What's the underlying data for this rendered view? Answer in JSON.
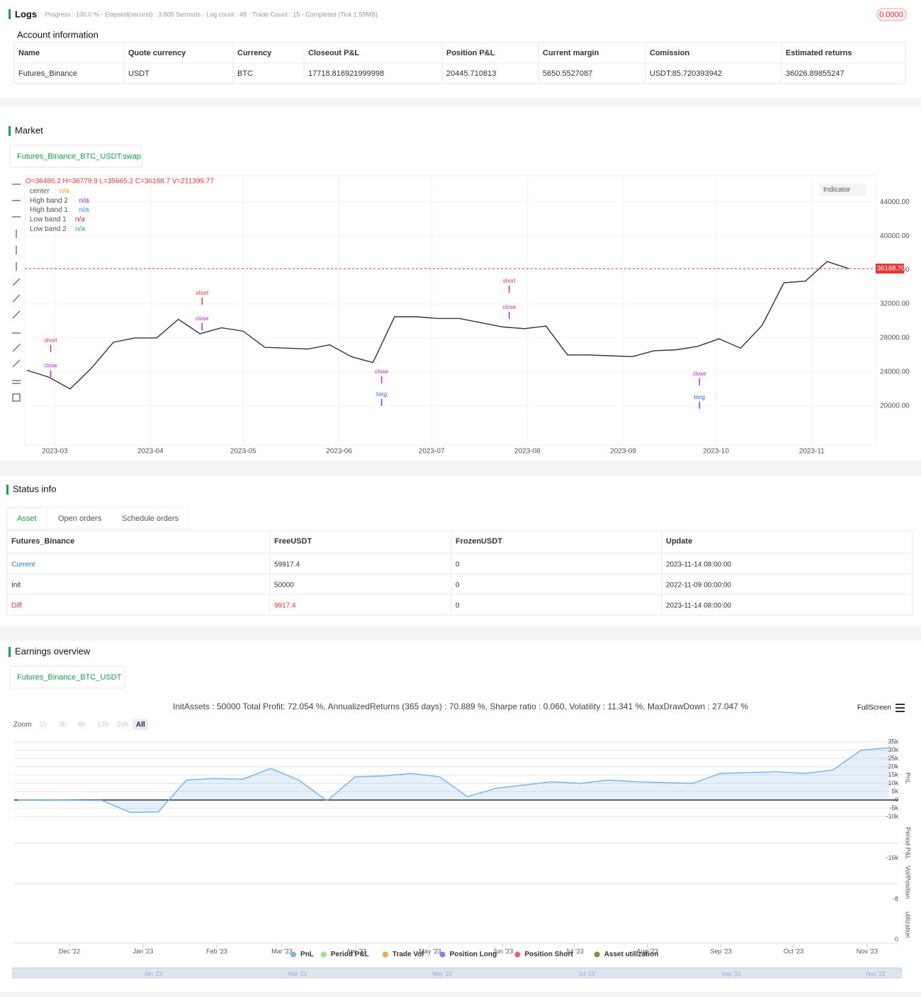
{
  "logs": {
    "title": "Logs",
    "status": "- Progress : 100.0 % - Elapsed(second) : 3.805  Seconds - Log count : 48 - Trade Count : 15 - Completed (Tick 1.59MB)",
    "badge": "0.0000"
  },
  "account": {
    "title": "Account information",
    "columns": [
      "Name",
      "Quote currency",
      "Currency",
      "Closeout P&L",
      "Position P&L",
      "Current margin",
      "Comission",
      "Estimated returns"
    ],
    "rows": [
      [
        "Futures_Binance",
        "USDT",
        "BTC",
        "17718.816921999998",
        "20445.710813",
        "5650.5527087",
        "USDT:85.720393942",
        "36026.89855247"
      ]
    ]
  },
  "market": {
    "title": "Market",
    "tab": "Futures_Binance_BTC_USDT:swap",
    "indicator_button": "Indicator",
    "chart_data": {
      "type": "line",
      "ohlc_label": "O=36486.2 H=36779.9 L=35665.2 C=36168.7 V=211399.77",
      "legend": [
        {
          "name": "center",
          "value": "n/a",
          "color": "#f59e0b"
        },
        {
          "name": "High band 2",
          "value": "n/a",
          "color": "#9c27b0"
        },
        {
          "name": "High band 1",
          "value": "n/a",
          "color": "#2196f3"
        },
        {
          "name": "Low band 1",
          "value": "n/a",
          "color": "#e91e63"
        },
        {
          "name": "Low band 2",
          "value": "n/a",
          "color": "#26a69a"
        }
      ],
      "closes": [
        24200,
        23400,
        22000,
        24500,
        27500,
        28000,
        28000,
        30200,
        28500,
        29200,
        28800,
        26900,
        26800,
        26700,
        27200,
        25800,
        25100,
        30500,
        30500,
        30300,
        30300,
        29800,
        29300,
        29100,
        29400,
        26000,
        26000,
        25900,
        25800,
        26500,
        26600,
        27000,
        27900,
        26800,
        29500,
        34500,
        34700,
        37000,
        36168.7
      ],
      "color": "#333333",
      "xlim": [
        0,
        38
      ],
      "xticks": [
        {
          "value": 1.29,
          "label": "2023-03"
        },
        {
          "value": 5.71,
          "label": "2023-04"
        },
        {
          "value": 10.0,
          "label": "2023-05"
        },
        {
          "value": 14.43,
          "label": "2023-06"
        },
        {
          "value": 18.71,
          "label": "2023-07"
        },
        {
          "value": 23.14,
          "label": "2023-08"
        },
        {
          "value": 27.57,
          "label": "2023-09"
        },
        {
          "value": 31.86,
          "label": "2023-10"
        },
        {
          "value": 36.29,
          "label": "2023-11"
        }
      ],
      "ylim": [
        15400,
        47100
      ],
      "yticks": [
        {
          "value": 20000,
          "label": "20000.00"
        },
        {
          "value": 24000,
          "label": "24000.00"
        },
        {
          "value": 28000,
          "label": "28000.00"
        },
        {
          "value": 32000,
          "label": "32000.00"
        },
        {
          "value": 36000,
          "label": "36000.00"
        },
        {
          "value": 40000,
          "label": "40000.00"
        },
        {
          "value": 44000,
          "label": "44000.00"
        }
      ],
      "last_price": {
        "value": 36168.7,
        "label": "36168.70"
      },
      "signals": [
        {
          "label": "short",
          "x": 1.1,
          "y": 27670,
          "color": "#e53935"
        },
        {
          "label": "short",
          "x": 8.1,
          "y": 33250,
          "color": "#e53935"
        },
        {
          "label": "short",
          "x": 22.3,
          "y": 34670,
          "color": "#e53935"
        },
        {
          "label": "long",
          "x": 16.4,
          "y": 21330,
          "color": "#1e63e9"
        },
        {
          "label": "long",
          "x": 31.1,
          "y": 21000,
          "color": "#1e63e9"
        },
        {
          "label": "close",
          "x": 1.1,
          "y": 24700,
          "color": "#c026d3"
        },
        {
          "label": "close",
          "x": 8.1,
          "y": 30250,
          "color": "#c026d3"
        },
        {
          "label": "close",
          "x": 16.4,
          "y": 24000,
          "color": "#c026d3"
        },
        {
          "label": "close",
          "x": 22.3,
          "y": 31600,
          "color": "#c026d3"
        },
        {
          "label": "close",
          "x": 31.1,
          "y": 23750,
          "color": "#c026d3"
        }
      ]
    }
  },
  "status": {
    "title": "Status info",
    "tabs": [
      "Asset",
      "Open orders",
      "Schedule orders"
    ],
    "columns": [
      "Futures_Binance",
      "FreeUSDT",
      "FrozenUSDT",
      "Update"
    ],
    "rows": [
      [
        "Current",
        "59917.4",
        "0",
        "2023-11-14 08:00:00"
      ],
      [
        "Init",
        "50000",
        "0",
        "2022-11-09 00:00:00"
      ],
      [
        "Diff",
        "9917.4",
        "0",
        "2023-11-14 08:00:00"
      ]
    ]
  },
  "earnings": {
    "title": "Earnings overview",
    "tab": "Futures_Binance_BTC_USDT",
    "summary": "InitAssets : 50000 Total Profit: 72.054 %, AnnualizedReturns (365 days) : 70.889 %, Sharpe ratio : 0.060, Volatility : 11.341 %, MaxDrawDown : 27.047 %",
    "fullscreen": "FullScreen",
    "zoom": "Zoom",
    "zoom_buttons": [
      "1h",
      "3h",
      "8h",
      "12h",
      "24h",
      "All"
    ],
    "chart_data": {
      "type": "area",
      "series": [
        {
          "name": "PnL",
          "color": "#7cb5ec",
          "values": [
            0,
            0,
            -200,
            -300,
            -7500,
            -7200,
            12000,
            13000,
            12500,
            19000,
            12000,
            -500,
            14000,
            14500,
            16000,
            14000,
            2000,
            7000,
            9000,
            11000,
            10000,
            12000,
            11000,
            10500,
            10000,
            16000,
            16500,
            17000,
            16000,
            18000,
            30000,
            31500
          ]
        },
        {
          "name": "Period P&L",
          "color": "#90ed7d"
        },
        {
          "name": "Trade Vol",
          "color": "#f7a35c"
        },
        {
          "name": "Position Long",
          "color": "#8085e9"
        },
        {
          "name": "Position Short",
          "color": "#f15c80"
        },
        {
          "name": "Asset utilization",
          "color": "#8d8d3a"
        }
      ],
      "xlim": [
        0,
        31
      ],
      "xticks": [
        {
          "value": 1.84,
          "label": "Dec '22"
        },
        {
          "value": 4.46,
          "label": "Jan '23"
        },
        {
          "value": 7.08,
          "label": "Feb '23"
        },
        {
          "value": 9.4,
          "label": "Mar '23"
        },
        {
          "value": 12.05,
          "label": "Apr '23"
        },
        {
          "value": 14.67,
          "label": "May '23"
        },
        {
          "value": 17.26,
          "label": "Jun '23"
        },
        {
          "value": 19.81,
          "label": "Jul '23"
        },
        {
          "value": 22.4,
          "label": "Aug '23"
        },
        {
          "value": 25.02,
          "label": "Sep '23"
        },
        {
          "value": 27.6,
          "label": "Oct '23"
        },
        {
          "value": 30.22,
          "label": "Nov '23"
        }
      ],
      "ylim": [
        -12400,
        38000
      ],
      "yticks": [
        {
          "value": -10000,
          "label": "-10k"
        },
        {
          "value": -5000,
          "label": "-5k"
        },
        0,
        {
          "value": 5000,
          "label": "5k"
        },
        {
          "value": 10000,
          "label": "10k"
        },
        {
          "value": 15000,
          "label": "15k"
        },
        {
          "value": 20000,
          "label": "20k"
        },
        {
          "value": 25000,
          "label": "25k"
        },
        {
          "value": 30000,
          "label": "30k"
        },
        {
          "value": 35000,
          "label": "35k"
        }
      ],
      "axis_titles": [
        "PnL",
        "Period P&L",
        "Vol/Position",
        "utilization"
      ],
      "sub_ticks": [
        {
          "value": -16000,
          "label": "-16k"
        },
        {
          "value": -8,
          "label": "-8"
        },
        0
      ],
      "navigator": [
        "Jan '23",
        "Mar '23",
        "May '23",
        "Jul '23",
        "Sep '23",
        "Nov '23"
      ]
    }
  }
}
